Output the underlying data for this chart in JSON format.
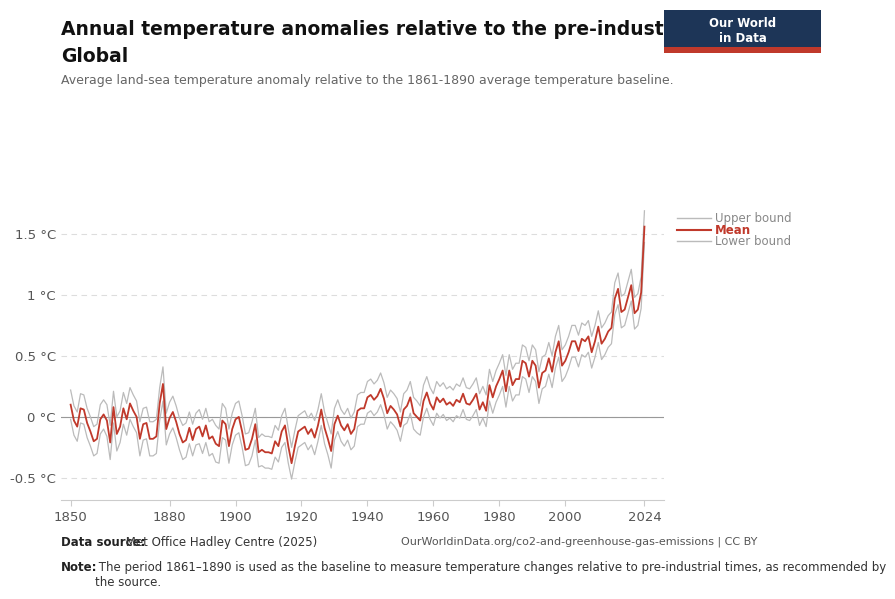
{
  "title1": "Annual temperature anomalies relative to the pre-industrial period,",
  "title2": "Global",
  "subtitle": "Average land-sea temperature anomaly relative to the 1861-1890 average temperature baseline.",
  "datasource_bold": "Data source:",
  "datasource_text": " Met Office Hadley Centre (2025)",
  "url": "OurWorldinData.org/co2-and-greenhouse-gas-emissions | CC BY",
  "note_bold": "Note:",
  "note_text": " The period 1861–1890 is used as the baseline to measure temperature changes relative to pre-industrial times, as recommended by\nthe source.",
  "yticks": [
    -0.5,
    0,
    0.5,
    1.0,
    1.5
  ],
  "ytick_labels": [
    "-0.5 °C",
    "0 °C",
    "0.5 °C",
    "1 °C",
    "1.5 °C"
  ],
  "xticks": [
    1850,
    1880,
    1900,
    1920,
    1940,
    1960,
    1980,
    2000,
    2024
  ],
  "xlim": [
    1847,
    2030
  ],
  "ylim": [
    -0.68,
    1.78
  ],
  "mean_color": "#C0392B",
  "bound_color": "#BBBBBB",
  "zero_line_color": "#999999",
  "grid_color": "#DDDDDD",
  "background_color": "#FFFFFF",
  "owid_box_color": "#1d3557",
  "owid_red": "#C0392B",
  "legend_label_color": "#888888",
  "years": [
    1850,
    1851,
    1852,
    1853,
    1854,
    1855,
    1856,
    1857,
    1858,
    1859,
    1860,
    1861,
    1862,
    1863,
    1864,
    1865,
    1866,
    1867,
    1868,
    1869,
    1870,
    1871,
    1872,
    1873,
    1874,
    1875,
    1876,
    1877,
    1878,
    1879,
    1880,
    1881,
    1882,
    1883,
    1884,
    1885,
    1886,
    1887,
    1888,
    1889,
    1890,
    1891,
    1892,
    1893,
    1894,
    1895,
    1896,
    1897,
    1898,
    1899,
    1900,
    1901,
    1902,
    1903,
    1904,
    1905,
    1906,
    1907,
    1908,
    1909,
    1910,
    1911,
    1912,
    1913,
    1914,
    1915,
    1916,
    1917,
    1918,
    1919,
    1920,
    1921,
    1922,
    1923,
    1924,
    1925,
    1926,
    1927,
    1928,
    1929,
    1930,
    1931,
    1932,
    1933,
    1934,
    1935,
    1936,
    1937,
    1938,
    1939,
    1940,
    1941,
    1942,
    1943,
    1944,
    1945,
    1946,
    1947,
    1948,
    1949,
    1950,
    1951,
    1952,
    1953,
    1954,
    1955,
    1956,
    1957,
    1958,
    1959,
    1960,
    1961,
    1962,
    1963,
    1964,
    1965,
    1966,
    1967,
    1968,
    1969,
    1970,
    1971,
    1972,
    1973,
    1974,
    1975,
    1976,
    1977,
    1978,
    1979,
    1980,
    1981,
    1982,
    1983,
    1984,
    1985,
    1986,
    1987,
    1988,
    1989,
    1990,
    1991,
    1992,
    1993,
    1994,
    1995,
    1996,
    1997,
    1998,
    1999,
    2000,
    2001,
    2002,
    2003,
    2004,
    2005,
    2006,
    2007,
    2008,
    2009,
    2010,
    2011,
    2012,
    2013,
    2014,
    2015,
    2016,
    2017,
    2018,
    2019,
    2020,
    2021,
    2022,
    2023,
    2024
  ],
  "mean": [
    0.1,
    -0.03,
    -0.08,
    0.07,
    0.06,
    -0.05,
    -0.12,
    -0.2,
    -0.18,
    -0.02,
    0.02,
    -0.03,
    -0.21,
    0.08,
    -0.14,
    -0.08,
    0.07,
    -0.02,
    0.11,
    0.05,
    0.0,
    -0.18,
    -0.06,
    -0.05,
    -0.18,
    -0.18,
    -0.16,
    0.11,
    0.27,
    -0.1,
    -0.01,
    0.04,
    -0.04,
    -0.14,
    -0.21,
    -0.19,
    -0.09,
    -0.19,
    -0.1,
    -0.08,
    -0.16,
    -0.07,
    -0.18,
    -0.16,
    -0.22,
    -0.24,
    -0.03,
    -0.06,
    -0.24,
    -0.1,
    -0.02,
    -0.0,
    -0.12,
    -0.27,
    -0.26,
    -0.18,
    -0.06,
    -0.29,
    -0.27,
    -0.29,
    -0.29,
    -0.3,
    -0.2,
    -0.24,
    -0.12,
    -0.07,
    -0.24,
    -0.38,
    -0.24,
    -0.12,
    -0.1,
    -0.08,
    -0.14,
    -0.1,
    -0.17,
    -0.07,
    0.06,
    -0.09,
    -0.18,
    -0.28,
    -0.06,
    0.01,
    -0.07,
    -0.11,
    -0.06,
    -0.14,
    -0.1,
    0.05,
    0.07,
    0.07,
    0.16,
    0.18,
    0.14,
    0.17,
    0.23,
    0.15,
    0.03,
    0.09,
    0.06,
    0.02,
    -0.08,
    0.06,
    0.09,
    0.16,
    0.03,
    0.0,
    -0.03,
    0.13,
    0.2,
    0.11,
    0.06,
    0.16,
    0.12,
    0.15,
    0.1,
    0.12,
    0.09,
    0.14,
    0.12,
    0.19,
    0.11,
    0.1,
    0.14,
    0.19,
    0.06,
    0.12,
    0.05,
    0.26,
    0.16,
    0.25,
    0.31,
    0.38,
    0.21,
    0.38,
    0.26,
    0.31,
    0.31,
    0.46,
    0.44,
    0.33,
    0.46,
    0.42,
    0.24,
    0.36,
    0.38,
    0.48,
    0.37,
    0.53,
    0.62,
    0.42,
    0.46,
    0.53,
    0.62,
    0.62,
    0.54,
    0.64,
    0.62,
    0.66,
    0.53,
    0.62,
    0.74,
    0.6,
    0.64,
    0.7,
    0.73,
    0.97,
    1.05,
    0.86,
    0.88,
    0.98,
    1.08,
    0.85,
    0.88,
    1.02,
    1.56
  ],
  "upper": [
    0.22,
    0.09,
    0.04,
    0.19,
    0.18,
    0.07,
    -0.0,
    -0.08,
    -0.06,
    0.1,
    0.14,
    0.1,
    -0.07,
    0.21,
    0.0,
    0.05,
    0.2,
    0.11,
    0.24,
    0.18,
    0.13,
    -0.04,
    0.07,
    0.08,
    -0.04,
    -0.04,
    -0.02,
    0.24,
    0.41,
    0.03,
    0.12,
    0.17,
    0.09,
    -0.01,
    -0.07,
    -0.05,
    0.04,
    -0.06,
    0.03,
    0.06,
    -0.02,
    0.07,
    -0.04,
    -0.02,
    -0.07,
    -0.1,
    0.11,
    0.07,
    -0.1,
    0.03,
    0.11,
    0.13,
    0.01,
    -0.14,
    -0.13,
    -0.04,
    0.07,
    -0.17,
    -0.14,
    -0.16,
    -0.16,
    -0.17,
    -0.07,
    -0.11,
    0.01,
    0.07,
    -0.1,
    -0.25,
    -0.11,
    0.01,
    0.03,
    0.05,
    -0.01,
    0.03,
    -0.03,
    0.06,
    0.19,
    0.04,
    -0.05,
    -0.14,
    0.07,
    0.14,
    0.06,
    0.02,
    0.07,
    -0.01,
    0.04,
    0.18,
    0.2,
    0.2,
    0.29,
    0.31,
    0.27,
    0.3,
    0.36,
    0.28,
    0.16,
    0.22,
    0.19,
    0.15,
    0.04,
    0.19,
    0.22,
    0.29,
    0.16,
    0.13,
    0.09,
    0.26,
    0.33,
    0.24,
    0.19,
    0.29,
    0.25,
    0.28,
    0.23,
    0.25,
    0.22,
    0.27,
    0.25,
    0.32,
    0.24,
    0.23,
    0.27,
    0.32,
    0.19,
    0.25,
    0.18,
    0.39,
    0.29,
    0.38,
    0.44,
    0.51,
    0.34,
    0.51,
    0.39,
    0.44,
    0.44,
    0.59,
    0.57,
    0.46,
    0.59,
    0.55,
    0.37,
    0.49,
    0.51,
    0.61,
    0.5,
    0.66,
    0.75,
    0.55,
    0.59,
    0.66,
    0.75,
    0.75,
    0.67,
    0.77,
    0.75,
    0.79,
    0.66,
    0.75,
    0.87,
    0.73,
    0.77,
    0.83,
    0.86,
    1.1,
    1.18,
    0.99,
    1.01,
    1.11,
    1.21,
    0.98,
    1.01,
    1.15,
    1.69
  ],
  "lower": [
    -0.02,
    -0.15,
    -0.2,
    -0.05,
    -0.06,
    -0.17,
    -0.24,
    -0.32,
    -0.3,
    -0.14,
    -0.1,
    -0.16,
    -0.35,
    -0.05,
    -0.28,
    -0.21,
    -0.06,
    -0.15,
    -0.02,
    -0.08,
    -0.13,
    -0.32,
    -0.19,
    -0.18,
    -0.32,
    -0.32,
    -0.3,
    -0.03,
    0.13,
    -0.23,
    -0.14,
    -0.09,
    -0.17,
    -0.27,
    -0.35,
    -0.33,
    -0.22,
    -0.32,
    -0.23,
    -0.22,
    -0.3,
    -0.21,
    -0.32,
    -0.3,
    -0.37,
    -0.38,
    -0.17,
    -0.19,
    -0.38,
    -0.23,
    -0.15,
    -0.13,
    -0.25,
    -0.4,
    -0.39,
    -0.32,
    -0.19,
    -0.41,
    -0.4,
    -0.42,
    -0.42,
    -0.43,
    -0.33,
    -0.37,
    -0.25,
    -0.21,
    -0.38,
    -0.51,
    -0.37,
    -0.25,
    -0.23,
    -0.21,
    -0.27,
    -0.23,
    -0.31,
    -0.2,
    -0.07,
    -0.22,
    -0.31,
    -0.42,
    -0.19,
    -0.12,
    -0.2,
    -0.24,
    -0.19,
    -0.27,
    -0.24,
    -0.08,
    -0.06,
    -0.06,
    0.03,
    0.05,
    0.01,
    0.04,
    0.1,
    0.02,
    -0.1,
    -0.04,
    -0.07,
    -0.11,
    -0.2,
    -0.07,
    -0.05,
    0.03,
    -0.1,
    -0.13,
    -0.15,
    0.0,
    0.07,
    -0.02,
    -0.07,
    0.03,
    -0.01,
    0.02,
    -0.03,
    -0.01,
    -0.04,
    0.01,
    -0.01,
    0.06,
    -0.02,
    -0.03,
    0.01,
    0.06,
    -0.07,
    -0.01,
    -0.08,
    0.13,
    0.03,
    0.12,
    0.18,
    0.25,
    0.08,
    0.25,
    0.13,
    0.18,
    0.18,
    0.33,
    0.31,
    0.2,
    0.33,
    0.29,
    0.11,
    0.23,
    0.25,
    0.35,
    0.24,
    0.4,
    0.49,
    0.29,
    0.33,
    0.4,
    0.49,
    0.49,
    0.41,
    0.51,
    0.49,
    0.53,
    0.4,
    0.49,
    0.61,
    0.47,
    0.51,
    0.57,
    0.6,
    0.84,
    0.92,
    0.73,
    0.75,
    0.85,
    0.95,
    0.72,
    0.75,
    0.89,
    1.43
  ]
}
